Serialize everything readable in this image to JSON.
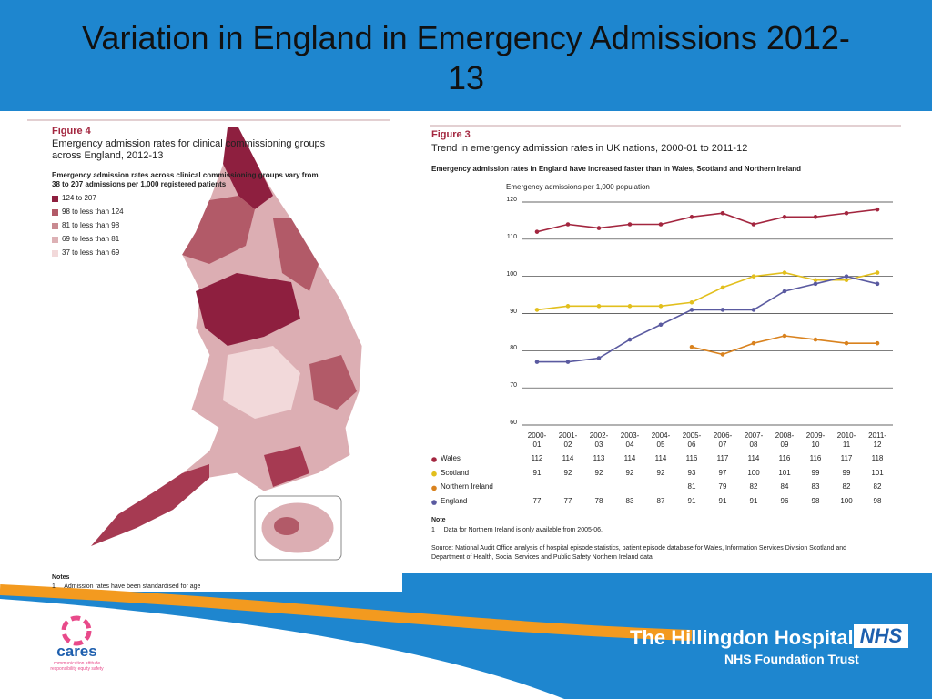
{
  "slide": {
    "title": "Variation in England in Emergency Admissions 2012-13",
    "org_name": "The Hillingdon Hospitals",
    "org_sub": "NHS Foundation Trust",
    "nhs": "NHS",
    "cares": "cares",
    "cares_sub": "communication attitude responsibility equity safety"
  },
  "map": {
    "figure": "Figure 4",
    "title": "Emergency admission rates for clinical commissioning groups across England, 2012-13",
    "subtitle": "Emergency admission rates across clinical commissioning groups vary from 38 to 207 admissions per 1,000 registered patients",
    "legend": [
      {
        "label": "124 to 207",
        "color": "#8e1f3f"
      },
      {
        "label": "98 to less than 124",
        "color": "#b25a68"
      },
      {
        "label": "81 to less than 98",
        "color": "#c98a91"
      },
      {
        "label": "69 to less than 81",
        "color": "#ddb1b5"
      },
      {
        "label": "37 to less than 69",
        "color": "#f2d9da"
      }
    ],
    "notes_title": "Notes",
    "note": "1     Admission rates have been standardised for age"
  },
  "chart_data": {
    "type": "line",
    "figure": "Figure 3",
    "title": "Trend in emergency admission rates in UK nations, 2000-01 to 2011-12",
    "subtitle": "Emergency admission rates in England have increased faster than in Wales, Scotland and Northern Ireland",
    "y_label": "Emergency admissions per 1,000 population",
    "categories": [
      "2000-01",
      "2001-02",
      "2002-03",
      "2003-04",
      "2004-05",
      "2005-06",
      "2006-07",
      "2007-08",
      "2008-09",
      "2009-10",
      "2010-11",
      "2011-12"
    ],
    "ylim": [
      60,
      120
    ],
    "yticks": [
      60,
      70,
      80,
      90,
      100,
      110,
      120
    ],
    "grid": true,
    "series": [
      {
        "name": "Wales",
        "color": "#a3263f",
        "values": [
          112,
          114,
          113,
          114,
          114,
          116,
          117,
          114,
          116,
          116,
          117,
          118
        ]
      },
      {
        "name": "Scotland",
        "color": "#e2bf1d",
        "values": [
          91,
          92,
          92,
          92,
          92,
          93,
          97,
          100,
          101,
          99,
          99,
          101
        ]
      },
      {
        "name": "Northern Ireland",
        "color": "#d9821e",
        "values": [
          null,
          null,
          null,
          null,
          null,
          81,
          79,
          82,
          84,
          83,
          82,
          82
        ]
      },
      {
        "name": "England",
        "color": "#5a5aa0",
        "values": [
          77,
          77,
          78,
          83,
          87,
          91,
          91,
          91,
          96,
          98,
          100,
          98
        ]
      }
    ],
    "note_title": "Note",
    "note": "1     Data for Northern Ireland is only available from 2005-06.",
    "source": "Source: National Audit Office analysis of hospital episode statistics, patient episode database for Wales, Information Services Division Scotland and Department of Health, Social Services and Public Safety Northern Ireland data"
  }
}
